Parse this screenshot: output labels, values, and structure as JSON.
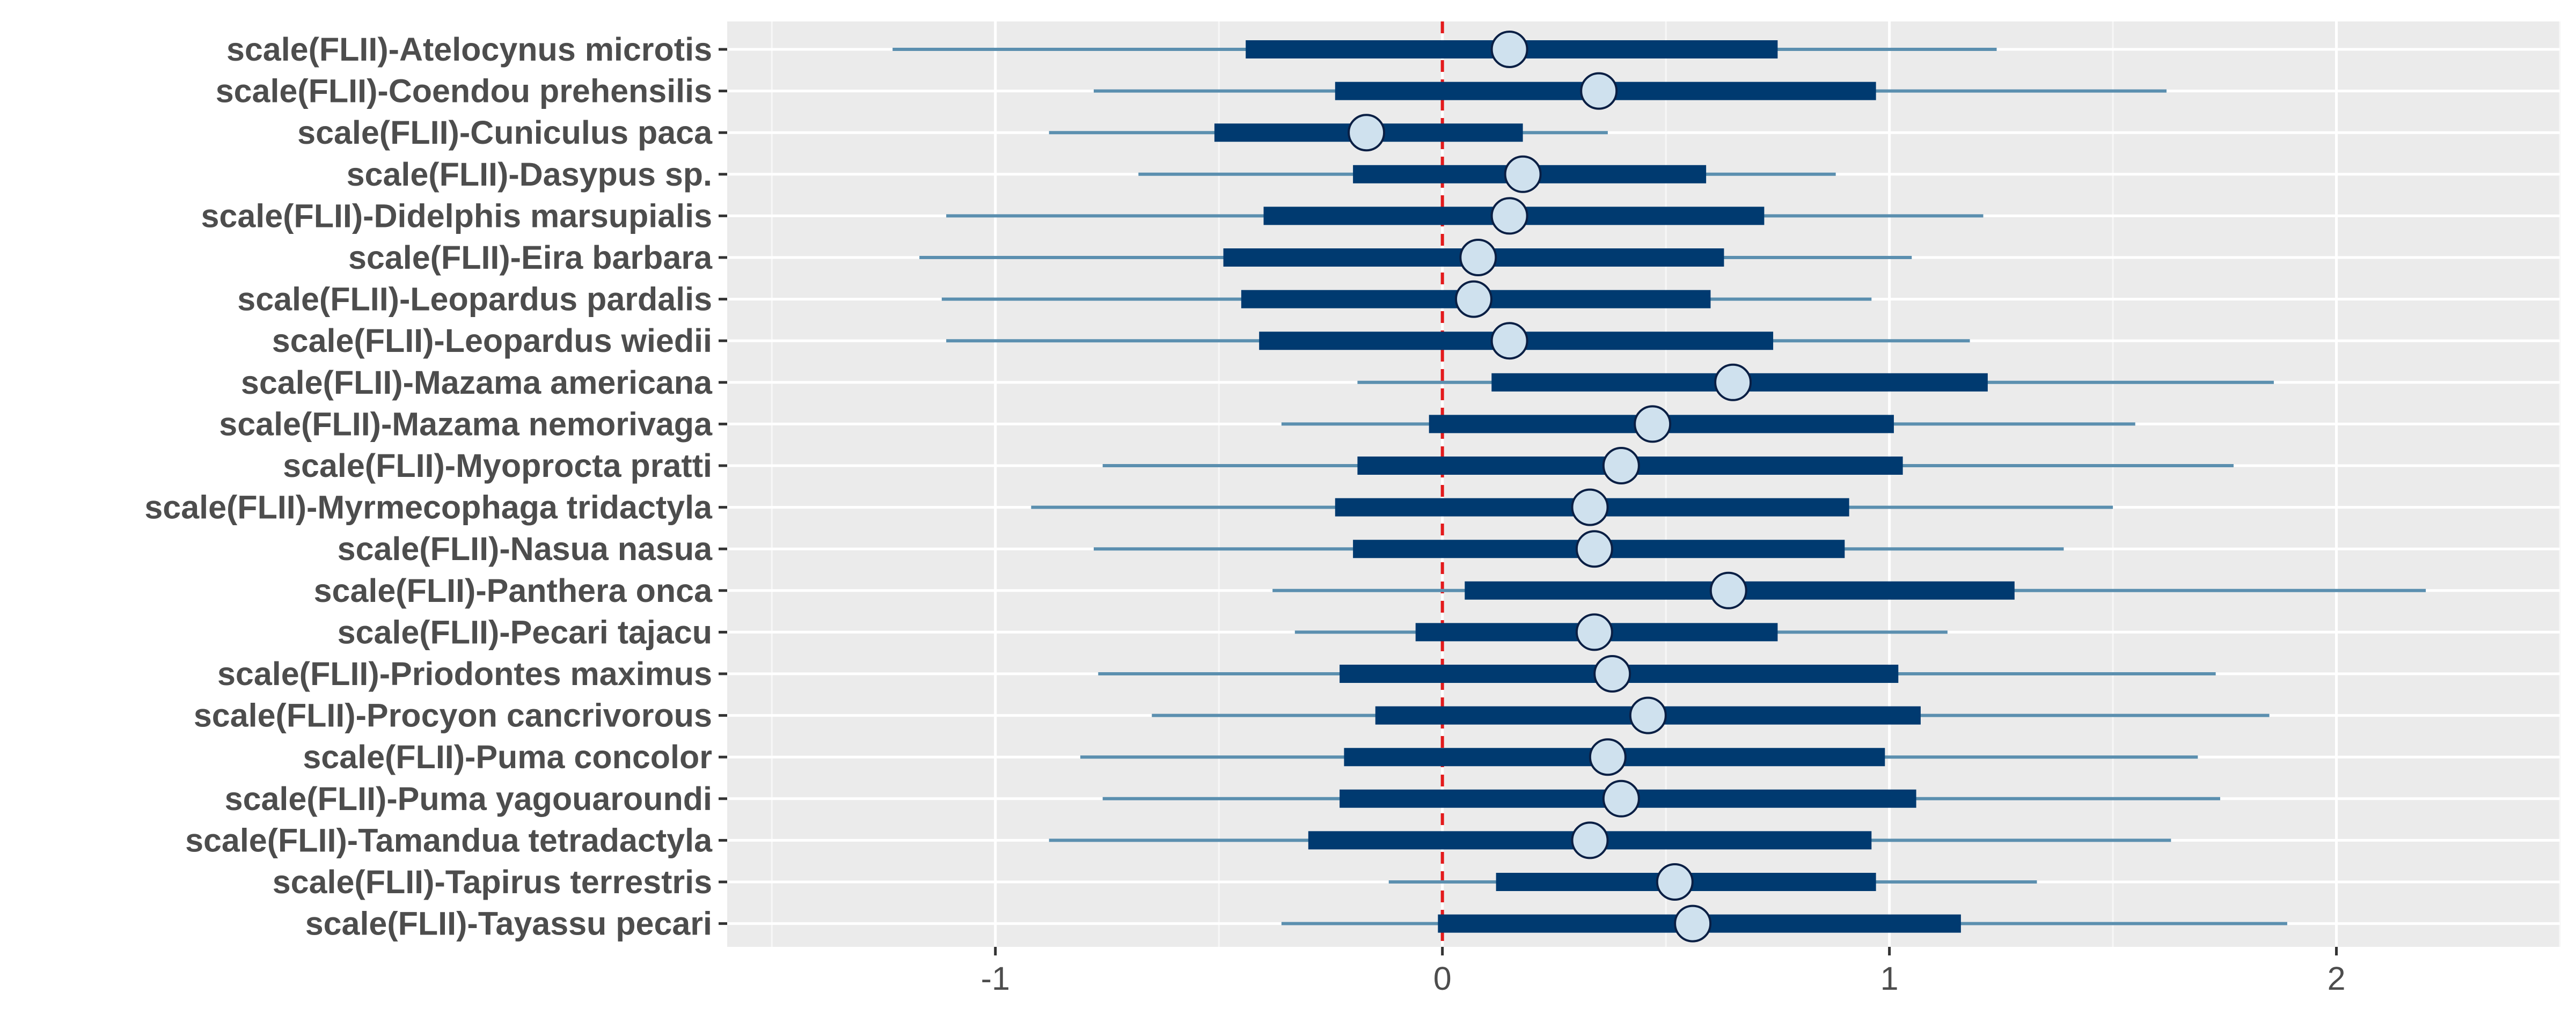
{
  "chart_data": {
    "type": "interval",
    "categories": [
      "scale(FLII)-Atelocynus microtis",
      "scale(FLII)-Coendou prehensilis",
      "scale(FLII)-Cuniculus paca",
      "scale(FLII)-Dasypus sp.",
      "scale(FLII)-Didelphis marsupialis",
      "scale(FLII)-Eira barbara",
      "scale(FLII)-Leopardus pardalis",
      "scale(FLII)-Leopardus wiedii",
      "scale(FLII)-Mazama americana",
      "scale(FLII)-Mazama nemorivaga",
      "scale(FLII)-Myoprocta pratti",
      "scale(FLII)-Myrmecophaga tridactyla",
      "scale(FLII)-Nasua nasua",
      "scale(FLII)-Panthera onca",
      "scale(FLII)-Pecari tajacu",
      "scale(FLII)-Priodontes maximus",
      "scale(FLII)-Procyon cancrivorous",
      "scale(FLII)-Puma concolor",
      "scale(FLII)-Puma yagouaroundi",
      "scale(FLII)-Tamandua tetradactyla",
      "scale(FLII)-Tapirus terrestris",
      "scale(FLII)-Tayassu pecari"
    ],
    "estimate": [
      0.15,
      0.35,
      -0.17,
      0.18,
      0.15,
      0.08,
      0.07,
      0.15,
      0.65,
      0.47,
      0.4,
      0.33,
      0.34,
      0.64,
      0.34,
      0.38,
      0.46,
      0.37,
      0.4,
      0.33,
      0.52,
      0.56
    ],
    "inner_low": [
      -0.44,
      -0.24,
      -0.51,
      -0.2,
      -0.4,
      -0.49,
      -0.45,
      -0.41,
      0.11,
      -0.03,
      -0.19,
      -0.24,
      -0.2,
      0.05,
      -0.06,
      -0.23,
      -0.15,
      -0.22,
      -0.23,
      -0.3,
      0.12,
      -0.01
    ],
    "inner_high": [
      0.75,
      0.97,
      0.18,
      0.59,
      0.72,
      0.63,
      0.6,
      0.74,
      1.22,
      1.01,
      1.03,
      0.91,
      0.9,
      1.28,
      0.75,
      1.02,
      1.07,
      0.99,
      1.06,
      0.96,
      0.97,
      1.16
    ],
    "outer_low": [
      -1.23,
      -0.78,
      -0.88,
      -0.68,
      -1.11,
      -1.17,
      -1.12,
      -1.11,
      -0.19,
      -0.36,
      -0.76,
      -0.92,
      -0.78,
      -0.38,
      -0.33,
      -0.77,
      -0.65,
      -0.81,
      -0.76,
      -0.88,
      -0.12,
      -0.36
    ],
    "outer_high": [
      1.24,
      1.62,
      0.37,
      0.88,
      1.21,
      1.05,
      0.96,
      1.18,
      1.86,
      1.55,
      1.77,
      1.5,
      1.39,
      2.2,
      1.13,
      1.73,
      1.85,
      1.69,
      1.74,
      1.63,
      1.33,
      1.89
    ],
    "xlim": [
      -1.6,
      2.5
    ],
    "xticks": [
      -1,
      0,
      1,
      2
    ],
    "xtick_labels": [
      "-1",
      "0",
      "1",
      "2"
    ],
    "reference_line": 0,
    "title": "",
    "xlabel": "",
    "ylabel": "",
    "grid": true,
    "colors": {
      "panel": "#ebebeb",
      "grid_major": "#ffffff",
      "grid_minor": "#f7f7f7",
      "inner_interval": "#003a70",
      "outer_interval": "#5b8faf",
      "point_fill": "#cfe1ee",
      "point_stroke": "#0a1f44",
      "reference_line": "#e31a1c",
      "label_text": "#4d4d4d",
      "tick": "#333333"
    }
  }
}
